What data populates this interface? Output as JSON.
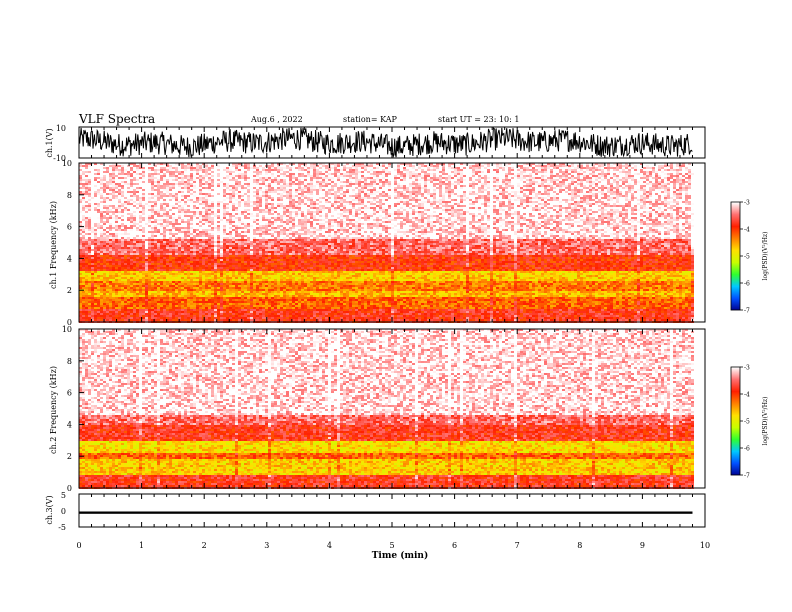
{
  "header": {
    "title": "VLF Spectra",
    "date": "Aug.6  , 2022",
    "station": "station= KAP",
    "start": "start  UT  =   23: 10: 1"
  },
  "colorbar": {
    "label": "log(PSD)(V²/Hz)",
    "ticks": [
      "-3",
      "-4",
      "-5",
      "-6",
      "-7"
    ],
    "colors": [
      "#00008f",
      "#0050ff",
      "#00c8ff",
      "#30ff30",
      "#c8ff00",
      "#ffe000",
      "#ff8000",
      "#ff2000",
      "#ff7070",
      "#ffffff"
    ]
  },
  "chart_data": [
    {
      "type": "line",
      "name": "ch1-waveform",
      "ylabel": "ch.1(V)",
      "yticks": [
        "10",
        "-10"
      ],
      "ylim": [
        -10,
        10
      ],
      "xlim": [
        0,
        10
      ],
      "x_range_of_data": [
        0,
        9.8
      ],
      "style": "dense noisy trace filling most of the panel"
    },
    {
      "type": "heatmap",
      "name": "ch1-spectrogram",
      "ylabel": "ch.1  Frequency (kHz)",
      "yticks": [
        "0",
        "2",
        "4",
        "6",
        "8",
        "10"
      ],
      "ylim": [
        0,
        10
      ],
      "xlim": [
        0,
        10
      ],
      "x_range_of_data": [
        0,
        9.8
      ],
      "bands": [
        {
          "f_low": 0,
          "f_high": 0.8,
          "log_psd": -3.8
        },
        {
          "f_low": 0.8,
          "f_high": 1.6,
          "log_psd": -4.2
        },
        {
          "f_low": 1.6,
          "f_high": 2.0,
          "log_psd": -4.6
        },
        {
          "f_low": 2.0,
          "f_high": 2.6,
          "log_psd": -4.3
        },
        {
          "f_low": 2.6,
          "f_high": 3.2,
          "log_psd": -4.7
        },
        {
          "f_low": 3.2,
          "f_high": 4.2,
          "log_psd": -3.9
        },
        {
          "f_low": 4.2,
          "f_high": 5.2,
          "log_psd": -3.5
        },
        {
          "f_low": 5.2,
          "f_high": 10,
          "log_psd": -3.1
        }
      ]
    },
    {
      "type": "heatmap",
      "name": "ch2-spectrogram",
      "ylabel": "ch.2  Frequency (kHz)",
      "yticks": [
        "0",
        "2",
        "4",
        "6",
        "8",
        "10"
      ],
      "ylim": [
        0,
        10
      ],
      "xlim": [
        0,
        10
      ],
      "x_range_of_data": [
        0,
        9.8
      ],
      "bands": [
        {
          "f_low": 0,
          "f_high": 0.8,
          "log_psd": -3.8
        },
        {
          "f_low": 0.8,
          "f_high": 1.8,
          "log_psd": -4.7
        },
        {
          "f_low": 1.8,
          "f_high": 2.2,
          "log_psd": -4.2
        },
        {
          "f_low": 2.2,
          "f_high": 3.0,
          "log_psd": -4.8
        },
        {
          "f_low": 3.0,
          "f_high": 4.0,
          "log_psd": -3.8
        },
        {
          "f_low": 4.0,
          "f_high": 4.6,
          "log_psd": -3.5
        },
        {
          "f_low": 4.6,
          "f_high": 10,
          "log_psd": -3.1
        }
      ]
    },
    {
      "type": "line",
      "name": "ch3-waveform",
      "ylabel": "ch.3(V)",
      "yticks": [
        "5",
        "0",
        "-5"
      ],
      "ylim": [
        -5,
        5
      ],
      "xlim": [
        0,
        10
      ],
      "x_range_of_data": [
        0,
        9.8
      ],
      "y_band": [
        -1,
        -0.3
      ],
      "xlabel": "Time  (min)",
      "xticks": [
        "0",
        "1",
        "2",
        "3",
        "4",
        "5",
        "6",
        "7",
        "8",
        "9",
        "10"
      ]
    }
  ]
}
